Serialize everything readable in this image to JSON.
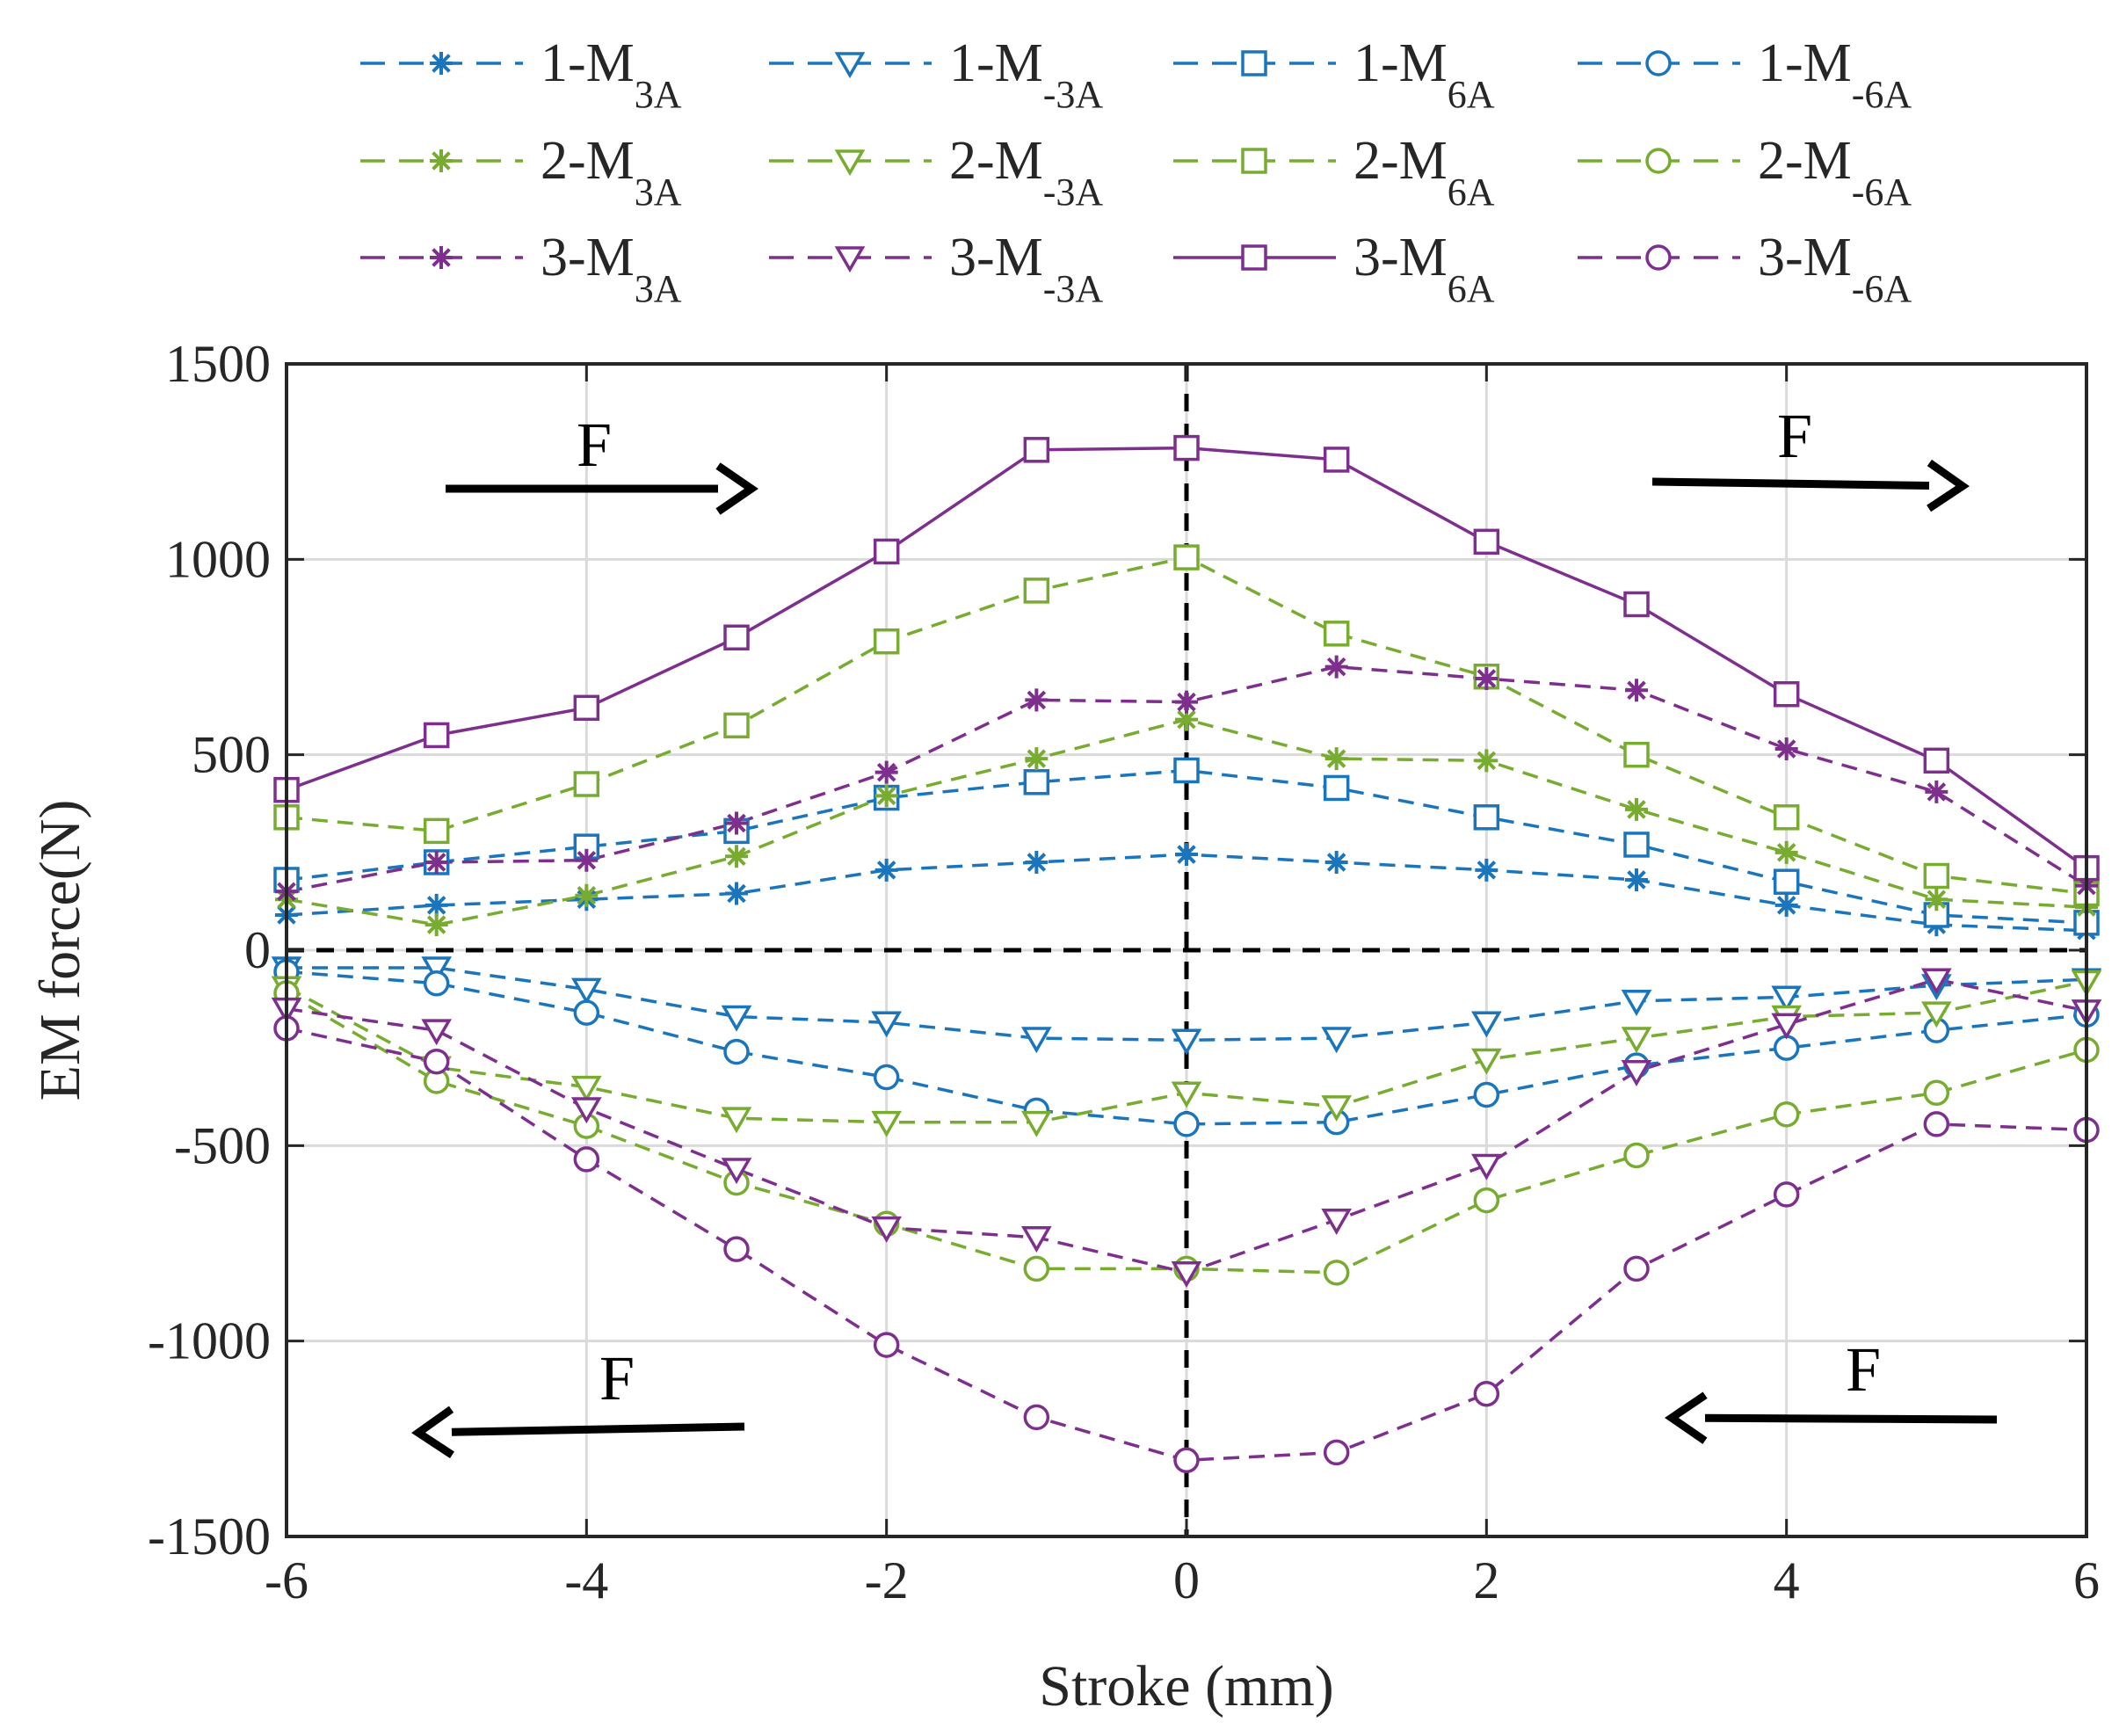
{
  "chart_data": {
    "type": "line",
    "xlabel": "Stroke (mm)",
    "ylabel": "EM force(N)",
    "xlim": [
      -6,
      6
    ],
    "ylim": [
      -1500,
      1500
    ],
    "x_ticks": [
      "-6",
      "-4",
      "-2",
      "0",
      "2",
      "4",
      "6"
    ],
    "y_ticks": [
      "1500",
      "1000",
      "500",
      "0",
      "-500",
      "-1000",
      "-1500"
    ],
    "grid": true,
    "legend_placement": "top, above plot, 4 columns",
    "x": [
      -6,
      -5,
      -4,
      -3,
      -2,
      -1,
      0,
      1,
      2,
      3,
      4,
      5,
      6
    ],
    "colors": {
      "group1": "#1a75bc",
      "group2": "#77ac30",
      "group3": "#7e2f8e"
    },
    "annotations": [
      "F",
      "F",
      "F",
      "F"
    ],
    "series": [
      {
        "prefix": "1-M",
        "sub": "3A",
        "color": "#1a75bc",
        "marker": "asterisk",
        "dash": true,
        "values": [
          90,
          115,
          130,
          145,
          205,
          225,
          245,
          225,
          205,
          180,
          115,
          65,
          50
        ]
      },
      {
        "prefix": "1-M",
        "sub": "-3A",
        "color": "#1a75bc",
        "marker": "triangle-down",
        "dash": true,
        "values": [
          -45,
          -45,
          -100,
          -170,
          -185,
          -225,
          -230,
          -225,
          -185,
          -130,
          -120,
          -90,
          -75
        ]
      },
      {
        "prefix": "1-M",
        "sub": "6A",
        "color": "#1a75bc",
        "marker": "square",
        "dash": true,
        "values": [
          180,
          225,
          265,
          305,
          390,
          430,
          460,
          415,
          340,
          270,
          175,
          90,
          70
        ]
      },
      {
        "prefix": "1-M",
        "sub": "-6A",
        "color": "#1a75bc",
        "marker": "circle",
        "dash": true,
        "values": [
          -55,
          -85,
          -160,
          -260,
          -325,
          -410,
          -445,
          -440,
          -370,
          -295,
          -250,
          -205,
          -165
        ]
      },
      {
        "prefix": "2-M",
        "sub": "3A",
        "color": "#77ac30",
        "marker": "asterisk",
        "dash": true,
        "values": [
          130,
          65,
          140,
          240,
          395,
          490,
          590,
          490,
          485,
          360,
          250,
          130,
          110
        ]
      },
      {
        "prefix": "2-M",
        "sub": "-3A",
        "color": "#77ac30",
        "marker": "triangle-down",
        "dash": true,
        "values": [
          -95,
          -300,
          -350,
          -430,
          -440,
          -440,
          -365,
          -400,
          -280,
          -225,
          -170,
          -160,
          -80
        ]
      },
      {
        "prefix": "2-M",
        "sub": "6A",
        "color": "#77ac30",
        "marker": "square",
        "dash": true,
        "values": [
          340,
          305,
          425,
          575,
          790,
          920,
          1005,
          810,
          700,
          500,
          340,
          190,
          145
        ]
      },
      {
        "prefix": "2-M",
        "sub": "-6A",
        "color": "#77ac30",
        "marker": "circle",
        "dash": true,
        "values": [
          -110,
          -335,
          -450,
          -595,
          -700,
          -815,
          -815,
          -825,
          -640,
          -525,
          -420,
          -365,
          -255
        ]
      },
      {
        "prefix": "3-M",
        "sub": "3A",
        "color": "#7e2f8e",
        "marker": "asterisk",
        "dash": true,
        "values": [
          150,
          225,
          230,
          325,
          455,
          640,
          635,
          725,
          695,
          665,
          515,
          405,
          165
        ]
      },
      {
        "prefix": "3-M",
        "sub": "-3A",
        "color": "#7e2f8e",
        "marker": "triangle-down",
        "dash": true,
        "values": [
          -150,
          -205,
          -405,
          -560,
          -710,
          -735,
          -825,
          -690,
          -550,
          -310,
          -190,
          -75,
          -155
        ]
      },
      {
        "prefix": "3-M",
        "sub": "6A",
        "color": "#7e2f8e",
        "marker": "square",
        "dash": false,
        "values": [
          410,
          550,
          620,
          800,
          1020,
          1280,
          1285,
          1255,
          1045,
          885,
          655,
          485,
          210
        ]
      },
      {
        "prefix": "3-M",
        "sub": "-6A",
        "color": "#7e2f8e",
        "marker": "circle",
        "dash": true,
        "values": [
          -200,
          -285,
          -535,
          -765,
          -1010,
          -1195,
          -1305,
          -1285,
          -1135,
          -815,
          -625,
          -445,
          -460
        ]
      }
    ]
  }
}
